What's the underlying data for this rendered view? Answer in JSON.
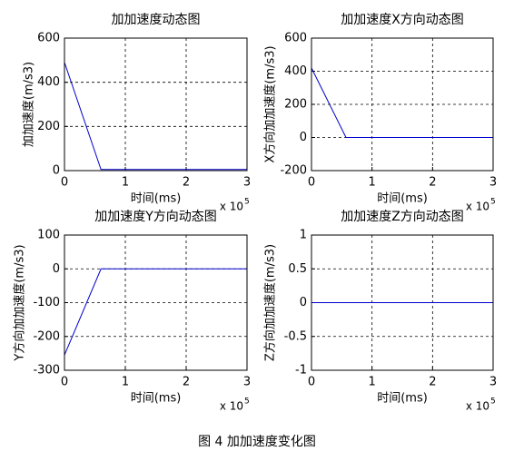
{
  "chart_data": [
    {
      "type": "line",
      "title": "加加速度动态图",
      "xlabel": "时间(ms)",
      "ylabel": "加加速度(m/s3)",
      "x_scale": {
        "base": "x 10",
        "exponent": "5"
      },
      "x": [
        0,
        0.6,
        3
      ],
      "values": [
        490,
        5,
        5
      ],
      "color": "#0000cc",
      "xlim": [
        0,
        3
      ],
      "xticks": [
        0,
        1,
        2,
        3
      ],
      "ylim": [
        0,
        600
      ],
      "yticks": [
        0,
        200,
        400,
        600
      ],
      "grid": true
    },
    {
      "type": "line",
      "title": "加加速度X方向动态图",
      "xlabel": "时间(ms)",
      "ylabel": "X方向加加速度(m/s3)",
      "x_scale": {
        "base": "x 10",
        "exponent": "5"
      },
      "x": [
        0,
        0.57,
        3
      ],
      "values": [
        420,
        0,
        0
      ],
      "color": "#0000cc",
      "xlim": [
        0,
        3
      ],
      "xticks": [
        0,
        1,
        2,
        3
      ],
      "ylim": [
        -200,
        600
      ],
      "yticks": [
        -200,
        0,
        200,
        400,
        600
      ],
      "grid": true
    },
    {
      "type": "line",
      "title": "加加速度Y方向动态图",
      "xlabel": "时间(ms)",
      "ylabel": "Y方向加加速度(m/s3)",
      "x_scale": {
        "base": "x 10",
        "exponent": "5"
      },
      "x": [
        0,
        0.6,
        3
      ],
      "values": [
        -255,
        0,
        0
      ],
      "color": "#0000cc",
      "xlim": [
        0,
        3
      ],
      "xticks": [
        0,
        1,
        2,
        3
      ],
      "ylim": [
        -300,
        100
      ],
      "yticks": [
        -300,
        -200,
        -100,
        0,
        100
      ],
      "grid": true
    },
    {
      "type": "line",
      "title": "加加速度Z方向动态图",
      "xlabel": "时间(ms)",
      "ylabel": "Z方向加加速度(m/s3)",
      "x_scale": {
        "base": "x 10",
        "exponent": "5"
      },
      "x": [
        0,
        3
      ],
      "values": [
        0,
        0
      ],
      "color": "#0000cc",
      "xlim": [
        0,
        3
      ],
      "xticks": [
        0,
        1,
        2,
        3
      ],
      "ylim": [
        -1,
        1
      ],
      "yticks": [
        -1,
        -0.5,
        0,
        0.5,
        1
      ],
      "grid": true
    }
  ],
  "caption": "图 4  加加速度变化图"
}
